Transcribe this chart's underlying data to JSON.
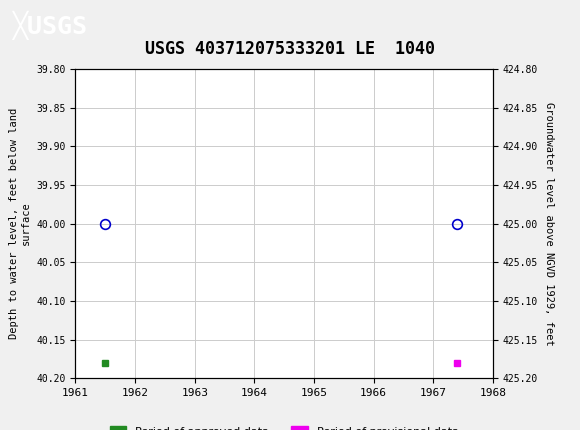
{
  "title": "USGS 403712075333201 LE  1040",
  "header_bg_color": "#1a6b3c",
  "header_text": "USGS",
  "left_ylabel": "Depth to water level, feet below land\nsurface",
  "right_ylabel": "Groundwater level above NGVD 1929, feet",
  "xlabel": "",
  "xlim": [
    1961.0,
    1968.0
  ],
  "ylim_left": [
    39.8,
    40.2
  ],
  "ylim_right": [
    424.8,
    425.2
  ],
  "left_yticks": [
    39.8,
    39.85,
    39.9,
    39.95,
    40.0,
    40.05,
    40.1,
    40.15,
    40.2
  ],
  "right_yticks": [
    424.8,
    424.85,
    424.9,
    424.95,
    425.0,
    425.05,
    425.1,
    425.15,
    425.2
  ],
  "xticks": [
    1961,
    1962,
    1963,
    1964,
    1965,
    1966,
    1967,
    1968
  ],
  "circle_points_x": [
    1961.5,
    1967.4
  ],
  "circle_points_y": [
    40.0,
    40.0
  ],
  "green_square_x": [
    1961.5
  ],
  "green_square_y": [
    40.18
  ],
  "pink_square_x": [
    1967.4
  ],
  "pink_square_y": [
    40.18
  ],
  "circle_color": "#0000cc",
  "green_color": "#228B22",
  "pink_color": "#ee00ee",
  "bg_plot_color": "#ffffff",
  "grid_color": "#cccccc",
  "font_family": "monospace"
}
